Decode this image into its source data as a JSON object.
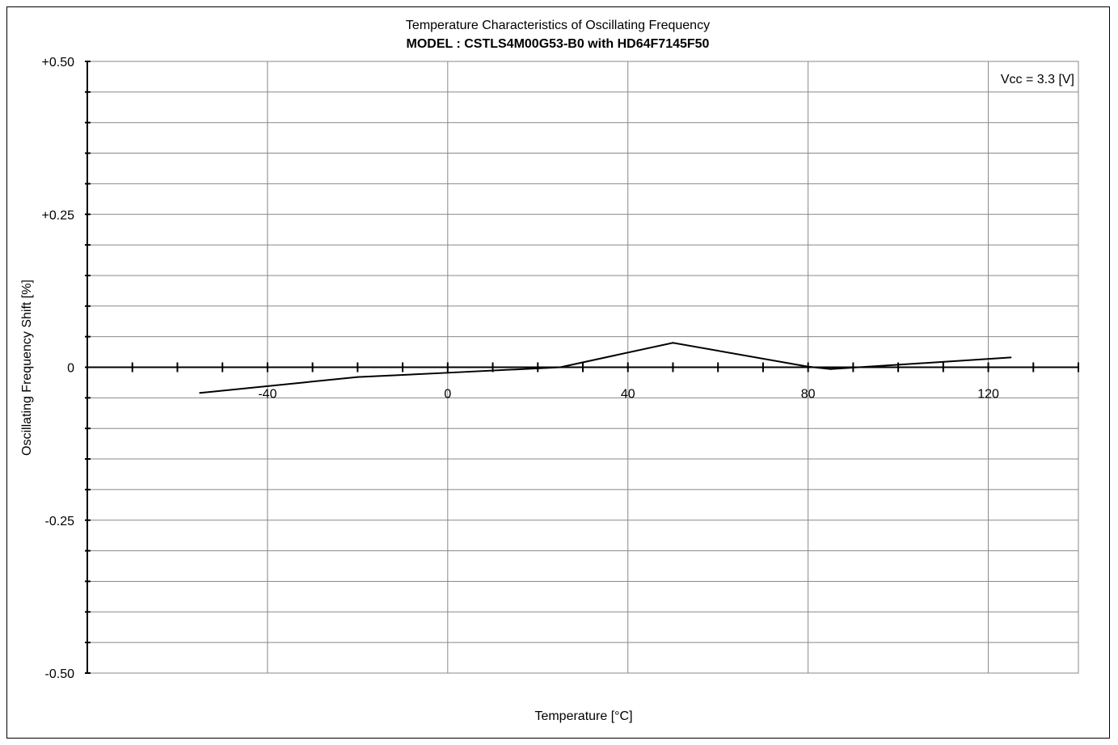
{
  "chart_data": {
    "type": "line",
    "title": "Temperature Characteristics of Oscillating Frequency",
    "subtitle": "MODEL : CSTLS4M00G53-B0 with HD64F7145F50",
    "annotation": "Vcc = 3.3 [V]",
    "xlabel": "Temperature [°C]",
    "ylabel": "Oscillating Frequency Shift [%]",
    "xlim": [
      -80,
      140
    ],
    "ylim": [
      -0.5,
      0.5
    ],
    "x_ticks": [
      -40,
      0,
      40,
      80,
      120
    ],
    "x_tick_labels": [
      "-40",
      "0",
      "40",
      "80",
      "120"
    ],
    "y_ticks": [
      0.5,
      0.25,
      0,
      -0.25,
      -0.5
    ],
    "y_tick_labels": [
      "+0.50",
      "+0.25",
      "0",
      "-0.25",
      "-0.50"
    ],
    "grid": true,
    "series": [
      {
        "x": [
          -55,
          -20,
          0,
          25,
          50,
          80,
          85,
          125
        ],
        "y": [
          -0.042,
          -0.016,
          -0.009,
          0.0,
          0.04,
          0.001,
          -0.003,
          0.016
        ],
        "color": "#000000"
      }
    ]
  }
}
